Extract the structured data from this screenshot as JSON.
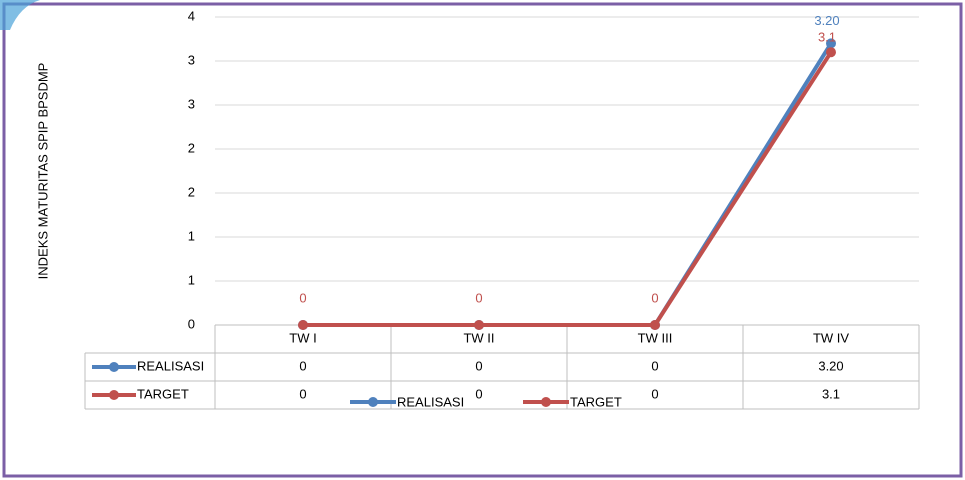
{
  "chart_data": {
    "type": "line",
    "y_axis_label": "INDEKS MATURITAS SPIP BPSDMP",
    "categories": [
      "TW I",
      "TW II",
      "TW III",
      "TW IV"
    ],
    "series": [
      {
        "name": "REALISASI",
        "color": "#4f81bd",
        "values": [
          0,
          0,
          0,
          3.2
        ],
        "value_labels": [
          "0",
          "0",
          "0",
          "3.20"
        ]
      },
      {
        "name": "TARGET",
        "color": "#c0504d",
        "values": [
          0,
          0,
          0,
          3.1
        ],
        "value_labels": [
          "0",
          "0",
          "0",
          "3.1"
        ]
      }
    ],
    "ylim": [
      0,
      3.5
    ],
    "yticks": [
      0,
      {
        "value": 0.5,
        "label": "1"
      },
      {
        "value": 1,
        "label": "1"
      },
      {
        "value": 1.5,
        "label": "2"
      },
      {
        "value": 2,
        "label": "2"
      },
      {
        "value": 2.5,
        "label": "3"
      },
      {
        "value": 3,
        "label": "3"
      },
      {
        "value": 3.5,
        "label": "4"
      }
    ],
    "grid": true,
    "legend": "bottom"
  }
}
